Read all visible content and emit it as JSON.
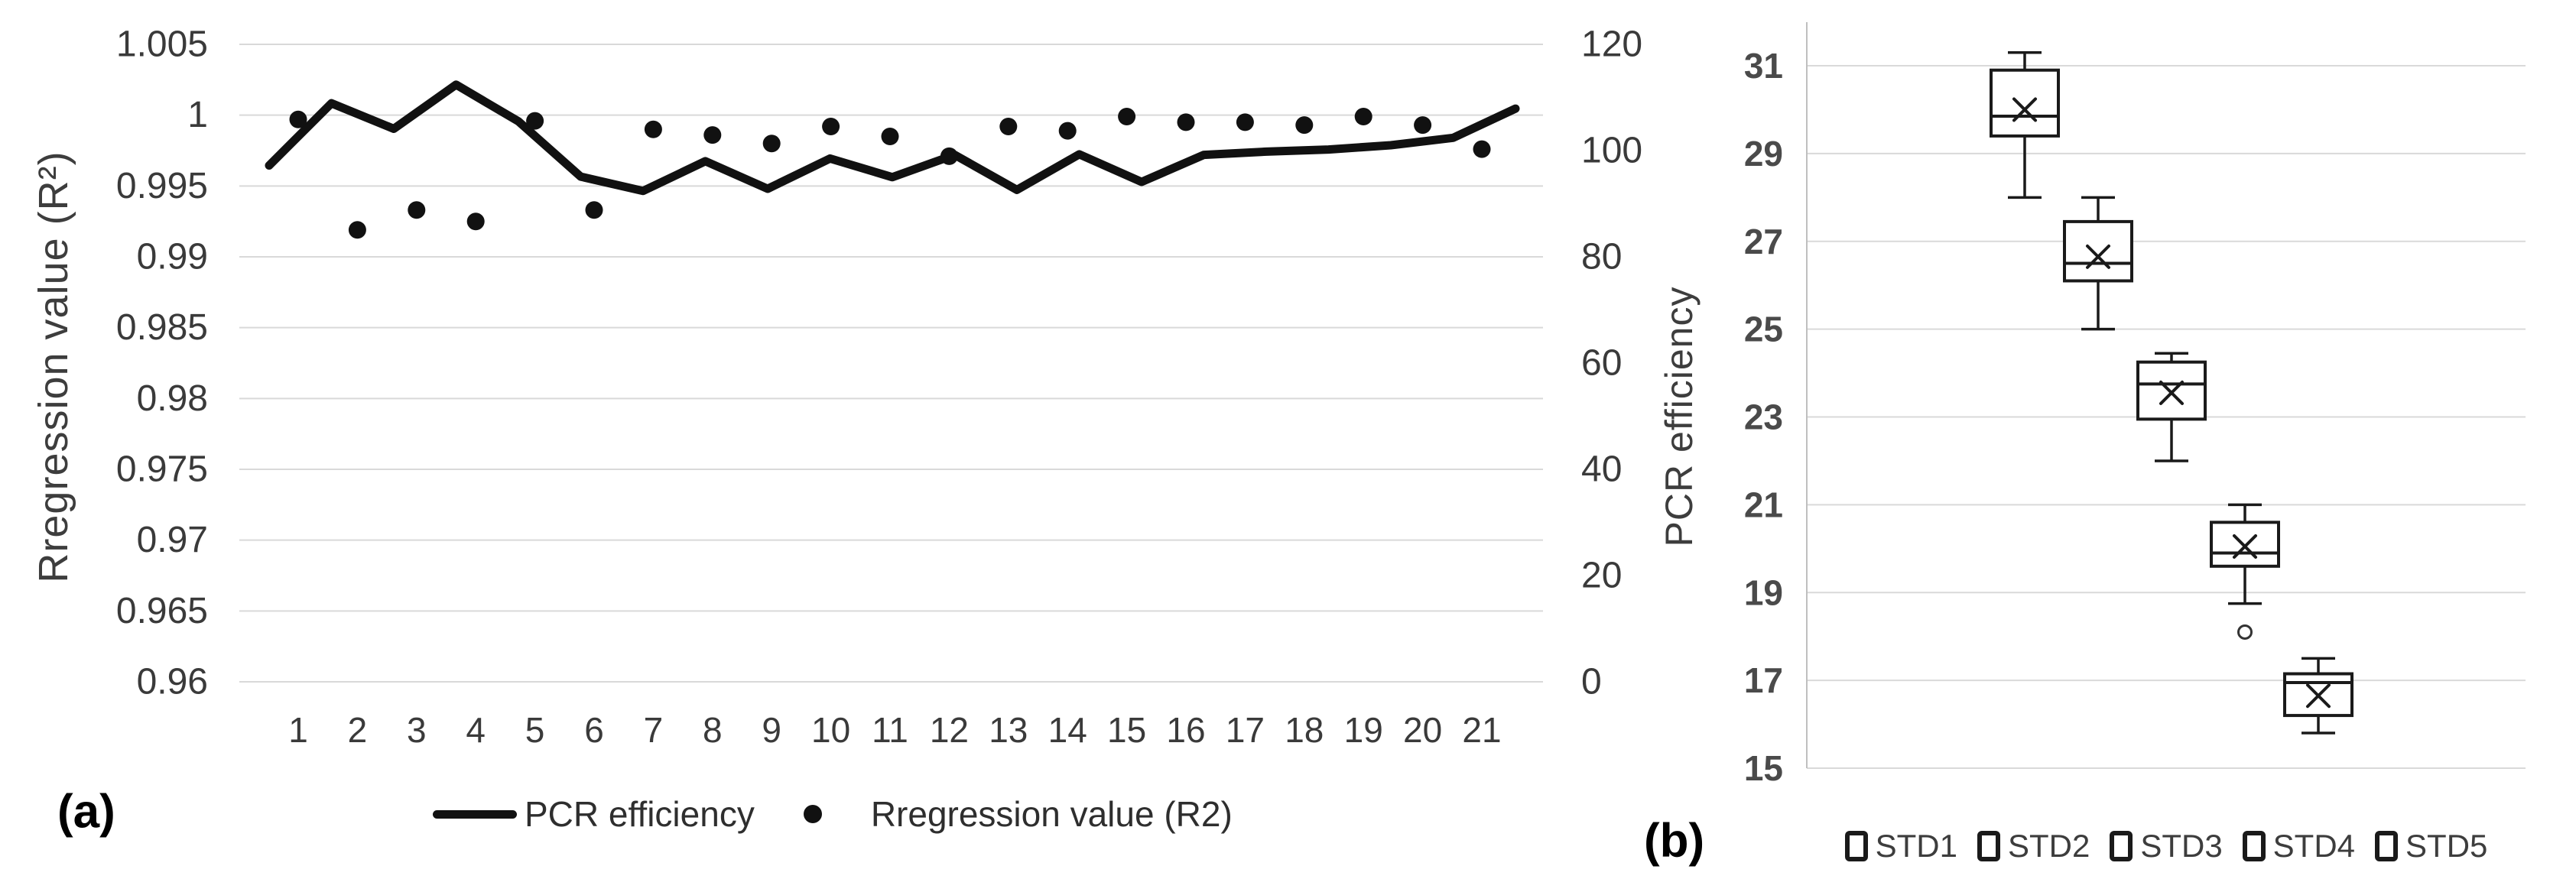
{
  "figure": {
    "caption_a": "(a)",
    "caption_b": "(b)"
  },
  "colors": {
    "series": "#111111",
    "grid": "#d9d9d9",
    "axis_line": "#bfbfbf",
    "tick_text": "#3a3a3a",
    "tick_text_bold": "#4a4a4a",
    "box_stroke": "#1a1a1a",
    "background": "#ffffff"
  },
  "chart_data": [
    {
      "type": "line",
      "panel": "a",
      "categories": [
        "1",
        "2",
        "3",
        "4",
        "5",
        "6",
        "7",
        "8",
        "9",
        "10",
        "11",
        "12",
        "13",
        "14",
        "15",
        "16",
        "17",
        "18",
        "19",
        "20",
        "21"
      ],
      "series": [
        {
          "name": "PCR efficiency",
          "style": "line",
          "axis": "right",
          "values": [
            97.2,
            108.9,
            104.1,
            112.4,
            105.5,
            95.1,
            92.4,
            98.0,
            92.8,
            98.5,
            95.0,
            99.2,
            92.6,
            99.3,
            94.1,
            99.2,
            99.8,
            100.2,
            101.0,
            102.4,
            107.9
          ]
        },
        {
          "name": "Rregression value (R2)",
          "style": "scatter",
          "axis": "left",
          "values": [
            0.9997,
            0.9919,
            0.9933,
            0.9925,
            0.9996,
            0.9933,
            0.999,
            0.9986,
            0.998,
            0.9992,
            0.9985,
            0.9971,
            0.9992,
            0.9989,
            0.9999,
            0.9995,
            0.9995,
            0.9993,
            0.9999,
            0.9993,
            0.9976
          ]
        }
      ],
      "left_axis": {
        "label": "Rregression value (R²)",
        "min": 0.96,
        "max": 1.005,
        "ticks": [
          "1.005",
          "1",
          "0.995",
          "0.99",
          "0.985",
          "0.98",
          "0.975",
          "0.97",
          "0.965",
          "0.96"
        ]
      },
      "right_axis": {
        "min": 0,
        "max": 120,
        "ticks": [
          "120",
          "100",
          "80",
          "60",
          "40",
          "20",
          "0"
        ]
      },
      "grid": "horizontal",
      "legend_position": "bottom"
    },
    {
      "type": "box",
      "panel": "b",
      "ylabel": "PCR efficiency",
      "ylim": [
        15,
        31
      ],
      "yticks": [
        "31",
        "29",
        "27",
        "25",
        "23",
        "21",
        "19",
        "17",
        "15"
      ],
      "categories": [
        "STD1",
        "STD2",
        "STD3",
        "STD4",
        "STD5"
      ],
      "boxes": [
        {
          "name": "STD1",
          "min": 28.0,
          "q1": 29.4,
          "median": 29.85,
          "mean": 30.0,
          "q3": 30.9,
          "max": 31.3,
          "outliers": []
        },
        {
          "name": "STD2",
          "min": 25.0,
          "q1": 26.1,
          "median": 26.5,
          "mean": 26.65,
          "q3": 27.45,
          "max": 28.0,
          "outliers": []
        },
        {
          "name": "STD3",
          "min": 22.0,
          "q1": 22.95,
          "median": 23.75,
          "mean": 23.55,
          "q3": 24.25,
          "max": 24.45,
          "outliers": []
        },
        {
          "name": "STD4",
          "min": 18.75,
          "q1": 19.6,
          "median": 19.9,
          "mean": 20.05,
          "q3": 20.6,
          "max": 21.0,
          "outliers": [
            18.1
          ]
        },
        {
          "name": "STD5",
          "min": 15.8,
          "q1": 16.2,
          "median": 16.95,
          "mean": 16.65,
          "q3": 17.15,
          "max": 17.5,
          "outliers": []
        }
      ],
      "grid": "horizontal",
      "legend_position": "bottom"
    }
  ]
}
